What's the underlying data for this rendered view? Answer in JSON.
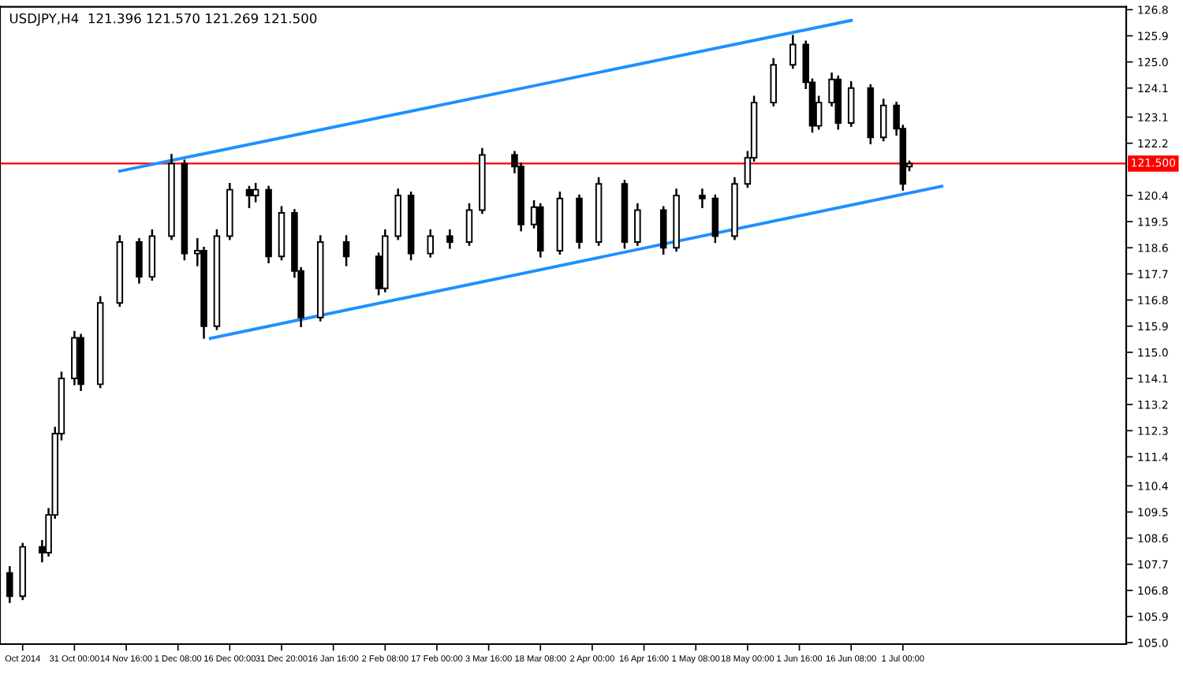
{
  "chart_data": {
    "type": "candlestick",
    "title": "USDJPY,H4  121.396 121.570 121.269 121.500",
    "categories": [
      null,
      null,
      null,
      "Oct 2014",
      null,
      null,
      null,
      null,
      null,
      null,
      null,
      "31 Oct 00:00",
      null,
      null,
      null,
      null,
      null,
      null,
      null,
      "14 Nov 16:00",
      null,
      null,
      null,
      null,
      null,
      null,
      null,
      "1 Dec 08:00",
      null,
      null,
      null,
      null,
      null,
      null,
      null,
      "16 Dec 00:00",
      null,
      null,
      null,
      null,
      null,
      null,
      null,
      "31 Dec 20:00",
      null,
      null,
      null,
      null,
      null,
      null,
      null,
      "16 Jan 16:00",
      null,
      null,
      null,
      null,
      null,
      null,
      null,
      "2 Feb 08:00",
      null,
      null,
      null,
      null,
      null,
      null,
      null,
      "17 Feb 00:00",
      null,
      null,
      null,
      null,
      null,
      null,
      null,
      "3 Mar 16:00",
      null,
      null,
      null,
      null,
      null,
      null,
      null,
      "18 Mar 08:00",
      null,
      null,
      null,
      null,
      null,
      null,
      null,
      "2 Apr 00:00",
      null,
      null,
      null,
      null,
      null,
      null,
      null,
      "16 Apr 16:00",
      null,
      null,
      null,
      null,
      null,
      null,
      null,
      "1 May 08:00",
      null,
      null,
      null,
      null,
      null,
      null,
      null,
      "18 May 00:00",
      null,
      null,
      null,
      null,
      null,
      null,
      null,
      "1 Jun 16:00",
      null,
      null,
      null,
      null,
      null,
      null,
      null,
      "16 Jun 08:00",
      null,
      null,
      null,
      null,
      null,
      null,
      null,
      "1 Jul 00:00",
      null,
      null,
      null,
      null,
      null,
      null,
      null,
      null,
      null,
      null,
      null,
      null,
      null,
      null,
      null,
      null,
      null,
      null,
      null,
      null,
      null,
      null,
      null,
      null,
      null,
      null,
      null,
      null,
      null,
      null,
      null,
      null,
      null,
      null
    ],
    "ohlc": [
      null,
      [
        107.4,
        107.6,
        106.4,
        106.6
      ],
      null,
      [
        106.6,
        108.4,
        106.5,
        108.3
      ],
      null,
      null,
      [
        108.3,
        108.5,
        107.8,
        108.1
      ],
      [
        108.1,
        109.6,
        108.0,
        109.4
      ],
      [
        109.4,
        112.4,
        109.3,
        112.2
      ],
      [
        112.2,
        114.3,
        112.0,
        114.1
      ],
      null,
      [
        114.1,
        115.7,
        113.9,
        115.5
      ],
      [
        115.5,
        115.6,
        113.7,
        113.9
      ],
      null,
      null,
      [
        113.9,
        116.9,
        113.8,
        116.7
      ],
      null,
      null,
      [
        116.7,
        119.0,
        116.6,
        118.8
      ],
      null,
      null,
      [
        118.8,
        118.9,
        117.4,
        117.6
      ],
      null,
      [
        117.6,
        119.2,
        117.5,
        119.0
      ],
      null,
      null,
      [
        119.0,
        121.8,
        118.9,
        121.5
      ],
      null,
      [
        121.5,
        121.6,
        118.2,
        118.4
      ],
      null,
      [
        118.4,
        118.9,
        118.0,
        118.5
      ],
      [
        118.5,
        118.6,
        115.5,
        115.9
      ],
      null,
      [
        115.9,
        119.2,
        115.8,
        119.0
      ],
      null,
      [
        119.0,
        120.8,
        118.9,
        120.6
      ],
      null,
      null,
      [
        120.6,
        120.7,
        120.0,
        120.4
      ],
      [
        120.4,
        120.8,
        120.2,
        120.6
      ],
      null,
      [
        120.6,
        120.7,
        118.1,
        118.3
      ],
      null,
      [
        118.3,
        120.0,
        118.2,
        119.8
      ],
      null,
      [
        119.8,
        119.9,
        117.6,
        117.8
      ],
      [
        117.8,
        117.9,
        115.9,
        116.2
      ],
      null,
      null,
      [
        116.2,
        119.0,
        116.1,
        118.8
      ],
      null,
      null,
      null,
      [
        118.8,
        119.0,
        118.0,
        118.3
      ],
      null,
      null,
      null,
      null,
      [
        118.3,
        118.4,
        117.0,
        117.2
      ],
      [
        117.2,
        119.2,
        117.1,
        119.0
      ],
      null,
      [
        119.0,
        120.6,
        118.9,
        120.4
      ],
      null,
      [
        120.4,
        120.5,
        118.2,
        118.4
      ],
      null,
      null,
      [
        118.4,
        119.2,
        118.3,
        119.0
      ],
      null,
      null,
      [
        119.0,
        119.2,
        118.6,
        118.8
      ],
      null,
      null,
      [
        118.8,
        120.1,
        118.7,
        119.9
      ],
      null,
      [
        119.9,
        122.0,
        119.8,
        121.8
      ],
      null,
      null,
      null,
      null,
      [
        121.8,
        121.9,
        121.2,
        121.4
      ],
      [
        121.4,
        121.5,
        119.2,
        119.4
      ],
      null,
      [
        119.4,
        120.2,
        119.3,
        120.0
      ],
      [
        120.0,
        120.1,
        118.3,
        118.5
      ],
      null,
      null,
      [
        118.5,
        120.5,
        118.4,
        120.3
      ],
      null,
      null,
      [
        120.3,
        120.4,
        118.6,
        118.8
      ],
      null,
      null,
      [
        118.8,
        121.0,
        118.7,
        120.8
      ],
      null,
      null,
      null,
      [
        120.8,
        120.9,
        118.6,
        118.8
      ],
      null,
      [
        118.8,
        120.1,
        118.7,
        119.9
      ],
      null,
      null,
      null,
      [
        119.9,
        120.0,
        118.4,
        118.6
      ],
      null,
      [
        118.6,
        120.6,
        118.5,
        120.4
      ],
      null,
      null,
      null,
      [
        120.4,
        120.6,
        120.0,
        120.3
      ],
      null,
      [
        120.3,
        120.4,
        118.8,
        119.0
      ],
      null,
      null,
      [
        119.0,
        121.0,
        118.9,
        120.8
      ],
      null,
      [
        120.8,
        121.9,
        120.7,
        121.7
      ],
      [
        121.7,
        123.8,
        121.6,
        123.6
      ],
      null,
      null,
      [
        123.6,
        125.1,
        123.5,
        124.9
      ],
      null,
      null,
      [
        124.9,
        125.9,
        124.8,
        125.6
      ],
      null,
      [
        125.6,
        125.7,
        124.1,
        124.3
      ],
      [
        124.3,
        124.4,
        122.6,
        122.8
      ],
      [
        122.8,
        123.8,
        122.7,
        123.6
      ],
      null,
      [
        123.6,
        124.6,
        123.5,
        124.4
      ],
      [
        124.4,
        124.5,
        122.7,
        122.9
      ],
      null,
      [
        122.9,
        124.3,
        122.8,
        124.1
      ],
      null,
      null,
      [
        124.1,
        124.2,
        122.2,
        122.4
      ],
      null,
      [
        122.4,
        123.7,
        122.3,
        123.5
      ],
      null,
      [
        123.5,
        123.6,
        122.5,
        122.7
      ],
      [
        122.7,
        122.8,
        120.6,
        120.8
      ],
      [
        121.396,
        121.57,
        121.269,
        121.5
      ],
      null,
      null,
      null,
      null,
      null,
      null,
      null,
      null,
      null,
      null,
      null,
      null,
      null,
      null,
      null,
      null,
      null,
      null,
      null,
      null,
      null,
      null,
      null,
      null,
      null,
      null,
      null,
      null,
      null,
      null,
      null,
      null,
      null
    ],
    "color": "#000000",
    "series": [
      {
        "type": "line",
        "color": "#1e90ff",
        "values": [
          null,
          null,
          null,
          null,
          null,
          null,
          null,
          null,
          null,
          null,
          null,
          null,
          null,
          null,
          null,
          null,
          null,
          null,
          121.24,
          null,
          null,
          null,
          null,
          null,
          null,
          null,
          null,
          null,
          null,
          null,
          null,
          null,
          null,
          null,
          null,
          null,
          null,
          null,
          null,
          null,
          null,
          null,
          null,
          null,
          null,
          null,
          null,
          null,
          null,
          null,
          null,
          null,
          null,
          null,
          null,
          null,
          null,
          null,
          null,
          null,
          null,
          null,
          null,
          null,
          null,
          null,
          null,
          null,
          null,
          null,
          null,
          null,
          null,
          null,
          null,
          null,
          null,
          null,
          null,
          null,
          null,
          null,
          null,
          null,
          null,
          null,
          null,
          null,
          null,
          null,
          null,
          null,
          null,
          null,
          null,
          null,
          null,
          null,
          null,
          null,
          null,
          null,
          null,
          null,
          null,
          null,
          null,
          null,
          null,
          null,
          null,
          null,
          null,
          null,
          null,
          null,
          null,
          null,
          null,
          null,
          null,
          null,
          null,
          null,
          null,
          null,
          null,
          null,
          null,
          null,
          null,
          126.43,
          null,
          null,
          null,
          null,
          null,
          null,
          null,
          null,
          null,
          null,
          null,
          null,
          null,
          null,
          null,
          null,
          null,
          null,
          null,
          null,
          null,
          null,
          null,
          null,
          null,
          null,
          null,
          null,
          null,
          null,
          null,
          null,
          null,
          null,
          null,
          null,
          null,
          null,
          null,
          null,
          null,
          null
        ]
      },
      {
        "type": "line",
        "color": "#1e90ff",
        "values": [
          null,
          null,
          null,
          null,
          null,
          null,
          null,
          null,
          null,
          null,
          null,
          null,
          null,
          null,
          null,
          null,
          null,
          null,
          null,
          null,
          null,
          null,
          null,
          null,
          null,
          null,
          null,
          null,
          null,
          null,
          null,
          null,
          115.48,
          null,
          null,
          null,
          null,
          null,
          null,
          null,
          null,
          null,
          null,
          null,
          null,
          null,
          null,
          null,
          null,
          null,
          null,
          null,
          null,
          null,
          null,
          null,
          null,
          null,
          null,
          null,
          null,
          null,
          null,
          null,
          null,
          null,
          null,
          null,
          null,
          null,
          null,
          null,
          null,
          null,
          null,
          null,
          null,
          null,
          null,
          null,
          null,
          null,
          null,
          null,
          null,
          null,
          null,
          null,
          null,
          null,
          null,
          null,
          null,
          null,
          null,
          null,
          null,
          null,
          null,
          null,
          null,
          null,
          null,
          null,
          null,
          null,
          null,
          null,
          null,
          null,
          null,
          null,
          null,
          null,
          null,
          null,
          null,
          null,
          null,
          null,
          null,
          null,
          null,
          null,
          null,
          null,
          null,
          null,
          null,
          null,
          null,
          null,
          null,
          null,
          null,
          null,
          null,
          null,
          null,
          null,
          null,
          null,
          null,
          null,
          null,
          120.72,
          null,
          null,
          null,
          null,
          null,
          null,
          null,
          null,
          null,
          null,
          null,
          null,
          null,
          null,
          null,
          null,
          null,
          null,
          null,
          null,
          null,
          null,
          null,
          null,
          null,
          null,
          null,
          null
        ]
      }
    ],
    "ref_lines": [
      {
        "axis": "y",
        "value": 121.5,
        "label": "121.500",
        "color": "#ff0000"
      }
    ],
    "ylim": [
      104.95,
      126.9
    ],
    "yticks": [
      {
        "value": 105.0,
        "label": "105.0"
      },
      105.9,
      106.8,
      107.7,
      108.6,
      109.5,
      110.4,
      111.4,
      112.3,
      113.2,
      114.1,
      {
        "value": 115.0,
        "label": "115.0"
      },
      115.9,
      116.8,
      117.7,
      118.6,
      119.5,
      120.4,
      122.2,
      123.1,
      124.1,
      {
        "value": 125.0,
        "label": "125.0"
      },
      125.9,
      126.8
    ],
    "grid": false,
    "legend": false
  }
}
